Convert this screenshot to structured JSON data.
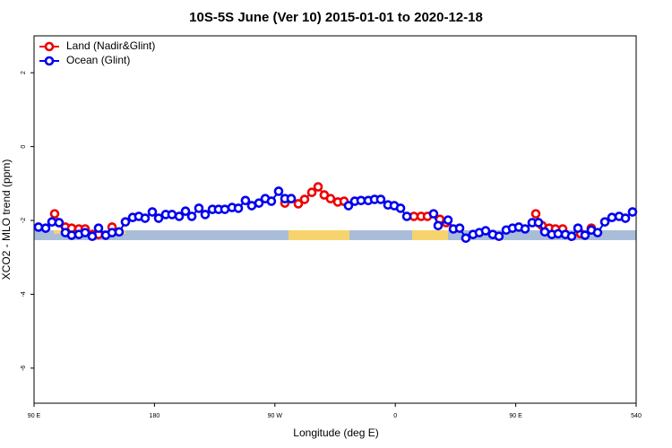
{
  "chart_data": {
    "type": "line",
    "title": "10S-5S June (Ver 10)   2015-01-01 to 2020-12-18",
    "x_label": "Longitude (deg E)",
    "y_label": "XCO2 - MLO trend (ppm)",
    "xlim": [
      90,
      540
    ],
    "ylim": [
      -6.95,
      3.0
    ],
    "xticks": [
      {
        "value": 90,
        "label": "90 E"
      },
      180,
      {
        "value": 270,
        "label": "90 W"
      },
      {
        "value": 360,
        "label": "0"
      },
      {
        "value": 450,
        "label": "90 E"
      },
      540
    ],
    "yticks": [
      -6,
      -4,
      -2,
      0,
      2
    ],
    "legend": "top-left",
    "series": [
      {
        "name": "Land (Nadir&Glint)",
        "color": "#ee0000",
        "x": [
          105.4,
          108.7,
          113.4,
          118.1,
          123.5,
          128.2,
          133.5,
          138.2,
          null,
          148.3,
          null,
          277.5,
          282.2,
          287.5,
          292.2,
          297.6,
          302.3,
          306.9,
          311.6,
          317.0,
          321.7,
          null,
          373.9,
          379.3,
          384.0,
          null,
          393.3,
          398.0,
          null,
          465.0,
          469.7,
          475.0,
          479.7,
          485.1,
          null,
          498.5,
          null,
          506.5
        ],
        "values": [
          -1.82,
          -2.06,
          -2.18,
          -2.21,
          -2.23,
          -2.23,
          -2.38,
          -2.38,
          null,
          -2.18,
          null,
          -1.53,
          -1.41,
          -1.55,
          -1.43,
          -1.24,
          -1.09,
          -1.31,
          -1.41,
          -1.5,
          -1.48,
          null,
          -1.89,
          -1.89,
          -1.89,
          null,
          -1.97,
          -2.06,
          null,
          -1.82,
          -2.14,
          -2.21,
          -2.23,
          -2.23,
          null,
          -2.36,
          null,
          -2.21
        ]
      },
      {
        "name": "Ocean (Glint)",
        "color": "#0000ee",
        "x": [
          93.3,
          98.7,
          103.4,
          108.7,
          113.4,
          118.1,
          123.5,
          128.2,
          133.5,
          138.2,
          143.6,
          148.3,
          153.6,
          158.3,
          163.7,
          168.3,
          173.0,
          178.4,
          183.1,
          188.4,
          193.1,
          198.5,
          203.2,
          207.9,
          213.2,
          217.9,
          223.3,
          227.9,
          232.6,
          238.0,
          242.7,
          248.0,
          252.7,
          258.1,
          262.8,
          267.4,
          272.8,
          277.5,
          282.2,
          null,
          325.0,
          329.7,
          334.4,
          339.8,
          344.5,
          349.1,
          354.5,
          359.2,
          363.9,
          368.6,
          null,
          388.6,
          392.0,
          399.4,
          403.4,
          408.1,
          412.7,
          418.1,
          422.8,
          427.5,
          432.8,
          437.5,
          442.9,
          447.6,
          452.3,
          457.0,
          462.3,
          467.0,
          471.7,
          477.0,
          481.7,
          487.1,
          491.8,
          496.5,
          501.8,
          506.5,
          511.2,
          516.6,
          521.9,
          527.3,
          532.0,
          537.3
        ],
        "values": [
          -2.18,
          -2.21,
          -2.04,
          -2.06,
          -2.33,
          -2.4,
          -2.38,
          -2.33,
          -2.43,
          -2.21,
          -2.4,
          -2.33,
          -2.31,
          -2.04,
          -1.92,
          -1.89,
          -1.94,
          -1.77,
          -1.94,
          -1.84,
          -1.84,
          -1.89,
          -1.75,
          -1.89,
          -1.67,
          -1.84,
          -1.7,
          -1.7,
          -1.7,
          -1.65,
          -1.67,
          -1.46,
          -1.6,
          -1.53,
          -1.41,
          -1.48,
          -1.21,
          -1.41,
          -1.41,
          null,
          -1.6,
          -1.48,
          -1.46,
          -1.46,
          -1.43,
          -1.43,
          -1.58,
          -1.6,
          -1.67,
          -1.89,
          null,
          -1.82,
          -2.14,
          -1.99,
          -2.23,
          -2.21,
          -2.48,
          -2.38,
          -2.33,
          -2.28,
          -2.38,
          -2.43,
          -2.26,
          -2.21,
          -2.18,
          -2.23,
          -2.06,
          -2.06,
          -2.31,
          -2.38,
          -2.36,
          -2.38,
          -2.43,
          -2.21,
          -2.4,
          -2.26,
          -2.33,
          -2.04,
          -1.92,
          -1.89,
          -1.94,
          -1.77
        ]
      }
    ]
  }
}
